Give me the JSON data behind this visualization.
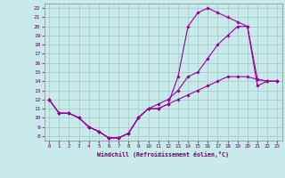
{
  "xlabel": "Windchill (Refroidissement éolien,°C)",
  "xlim": [
    -0.5,
    23.5
  ],
  "ylim": [
    7.5,
    22.5
  ],
  "xticks": [
    0,
    1,
    2,
    3,
    4,
    5,
    6,
    7,
    8,
    9,
    10,
    11,
    12,
    13,
    14,
    15,
    16,
    17,
    18,
    19,
    20,
    21,
    22,
    23
  ],
  "yticks": [
    8,
    9,
    10,
    11,
    12,
    13,
    14,
    15,
    16,
    17,
    18,
    19,
    20,
    21,
    22
  ],
  "bg_color": "#c8eaea",
  "grid_color": "#a0c8c8",
  "line_color": "#990099",
  "line_width": 0.8,
  "marker": "D",
  "marker_size": 1.8,
  "series": [
    [
      12.0,
      10.5,
      10.5,
      10.0,
      9.0,
      8.5,
      7.8,
      7.8,
      8.3,
      10.0,
      11.0,
      11.0,
      11.5,
      14.5,
      20.0,
      21.5,
      22.0,
      21.5,
      21.0,
      20.5,
      20.0,
      13.5,
      14.0,
      14.0
    ],
    [
      12.0,
      10.5,
      10.5,
      10.0,
      9.0,
      8.5,
      7.8,
      7.8,
      8.3,
      10.0,
      11.0,
      11.5,
      12.0,
      13.0,
      14.5,
      15.0,
      16.5,
      18.0,
      19.0,
      20.0,
      20.0,
      14.2,
      14.0,
      14.0
    ],
    [
      12.0,
      10.5,
      10.5,
      10.0,
      9.0,
      8.5,
      7.8,
      7.8,
      8.3,
      10.0,
      11.0,
      11.0,
      11.5,
      12.0,
      12.5,
      13.0,
      13.5,
      14.0,
      14.5,
      14.5,
      14.5,
      14.2,
      14.0,
      14.0
    ]
  ]
}
